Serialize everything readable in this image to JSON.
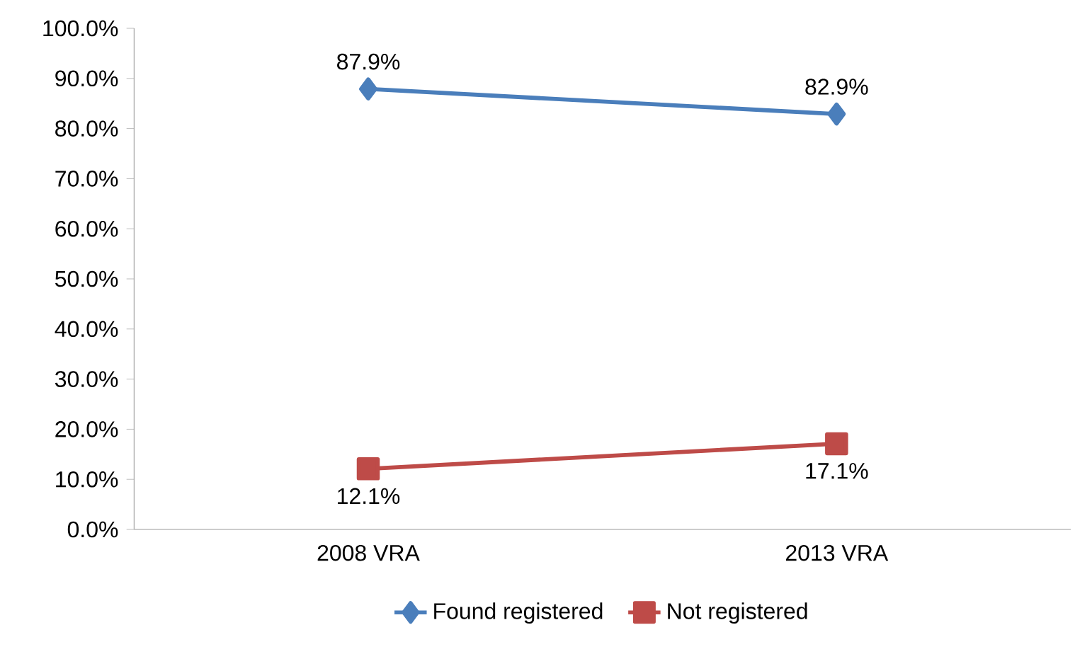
{
  "chart_data": {
    "type": "line",
    "categories": [
      "2008 VRA",
      "2013 VRA"
    ],
    "series": [
      {
        "name": "Found registered",
        "color": "#4a7ebb",
        "values": [
          87.9,
          82.9
        ],
        "marker": "diamond",
        "value_labels": [
          "87.9%",
          "82.9%"
        ]
      },
      {
        "name": "Not registered",
        "color": "#be4b48",
        "values": [
          12.1,
          17.1
        ],
        "marker": "square",
        "value_labels": [
          "12.1%",
          "17.1%"
        ]
      }
    ],
    "ylim": [
      0,
      100
    ],
    "yticks": [
      {
        "value": 0,
        "label": "0.0%"
      },
      {
        "value": 10,
        "label": "10.0%"
      },
      {
        "value": 20,
        "label": "20.0%"
      },
      {
        "value": 30,
        "label": "30.0%"
      },
      {
        "value": 40,
        "label": "40.0%"
      },
      {
        "value": 50,
        "label": "50.0%"
      },
      {
        "value": 60,
        "label": "60.0%"
      },
      {
        "value": 70,
        "label": "70.0%"
      },
      {
        "value": 80,
        "label": "80.0%"
      },
      {
        "value": 90,
        "label": "90.0%"
      },
      {
        "value": 100,
        "label": "100.0%"
      }
    ],
    "grid": false,
    "legend": "bottom",
    "line_style": "solid"
  }
}
